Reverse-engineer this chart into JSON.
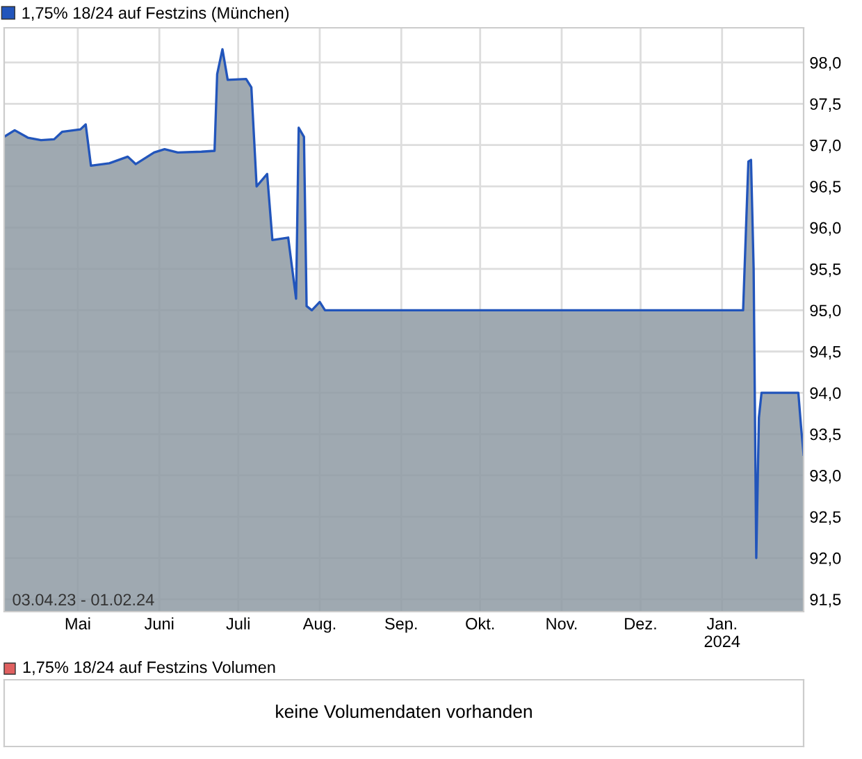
{
  "chart_data": [
    {
      "type": "area",
      "series": [
        {
          "name": "1,75% 18/24 auf Festzins (München)",
          "color": "#2255bb",
          "x": [
            "2023-04-03",
            "2023-04-07",
            "2023-04-12",
            "2023-04-17",
            "2023-04-22",
            "2023-04-25",
            "2023-05-02",
            "2023-05-04",
            "2023-05-06",
            "2023-05-13",
            "2023-05-20",
            "2023-05-23",
            "2023-05-30",
            "2023-06-03",
            "2023-06-08",
            "2023-06-17",
            "2023-06-22",
            "2023-06-23",
            "2023-06-25",
            "2023-06-27",
            "2023-07-04",
            "2023-07-06",
            "2023-07-08",
            "2023-07-12",
            "2023-07-14",
            "2023-07-20",
            "2023-07-23",
            "2023-07-24",
            "2023-07-26",
            "2023-07-27",
            "2023-07-29",
            "2023-08-01",
            "2023-08-03",
            "2024-01-09",
            "2024-01-10",
            "2024-01-11",
            "2024-01-12",
            "2024-01-13",
            "2024-01-14",
            "2024-01-15",
            "2024-01-16",
            "2024-01-30",
            "2024-01-31",
            "2024-02-01"
          ],
          "values": [
            97.1,
            97.18,
            97.09,
            97.06,
            97.07,
            97.16,
            97.19,
            97.25,
            96.75,
            96.78,
            96.86,
            96.77,
            96.91,
            96.95,
            96.91,
            96.92,
            96.93,
            97.86,
            98.16,
            97.79,
            97.8,
            97.7,
            96.5,
            96.65,
            95.85,
            95.88,
            95.14,
            97.21,
            97.1,
            95.05,
            95.0,
            95.1,
            95.0,
            95.0,
            95.9,
            96.8,
            96.82,
            95.5,
            92.0,
            93.7,
            94.0,
            94.0,
            93.6,
            93.25
          ]
        }
      ],
      "xlim": [
        "2023-04-03",
        "2024-02-01"
      ],
      "xticks": [
        {
          "value": "2023-05-01",
          "label": "Mai"
        },
        {
          "value": "2023-06-01",
          "label": "Juni"
        },
        {
          "value": "2023-07-01",
          "label": "Juli"
        },
        {
          "value": "2023-08-01",
          "label": "Aug."
        },
        {
          "value": "2023-09-01",
          "label": "Sep."
        },
        {
          "value": "2023-10-01",
          "label": "Okt."
        },
        {
          "value": "2023-11-01",
          "label": "Nov."
        },
        {
          "value": "2023-12-01",
          "label": "Dez."
        },
        {
          "value": "2024-01-01",
          "label": "Jan.\n2024"
        }
      ],
      "ylim": [
        91.35,
        98.42
      ],
      "yticks": [
        {
          "value": 91.5,
          "label": "91,5"
        },
        {
          "value": 92.0,
          "label": "92,0"
        },
        {
          "value": 92.5,
          "label": "92,5"
        },
        {
          "value": 93.0,
          "label": "93,0"
        },
        {
          "value": 93.5,
          "label": "93,5"
        },
        {
          "value": 94.0,
          "label": "94,0"
        },
        {
          "value": 94.5,
          "label": "94,5"
        },
        {
          "value": 95.0,
          "label": "95,0"
        },
        {
          "value": 95.5,
          "label": "95,5"
        },
        {
          "value": 96.0,
          "label": "96,0"
        },
        {
          "value": 96.5,
          "label": "96,5"
        },
        {
          "value": 97.0,
          "label": "97,0"
        },
        {
          "value": 97.5,
          "label": "97,5"
        },
        {
          "value": 98.0,
          "label": "98,0"
        }
      ],
      "annotations": [
        "03.04.23 - 01.02.24"
      ],
      "grid": true,
      "legend": "top left"
    },
    {
      "type": "other",
      "title": "1,75% 18/24 auf Festzins Volumen",
      "annotations": [
        "keine Volumendaten vorhanden"
      ]
    }
  ]
}
